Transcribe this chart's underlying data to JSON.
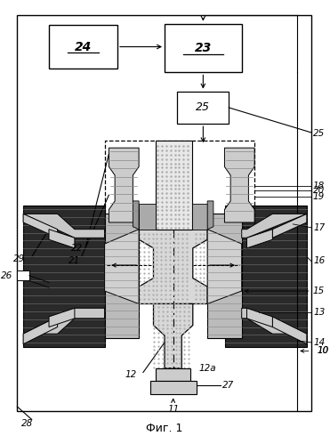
{
  "figsize": [
    3.71,
    4.99
  ],
  "dpi": 100,
  "bg_color": "#ffffff",
  "title": "Фиг. 1"
}
